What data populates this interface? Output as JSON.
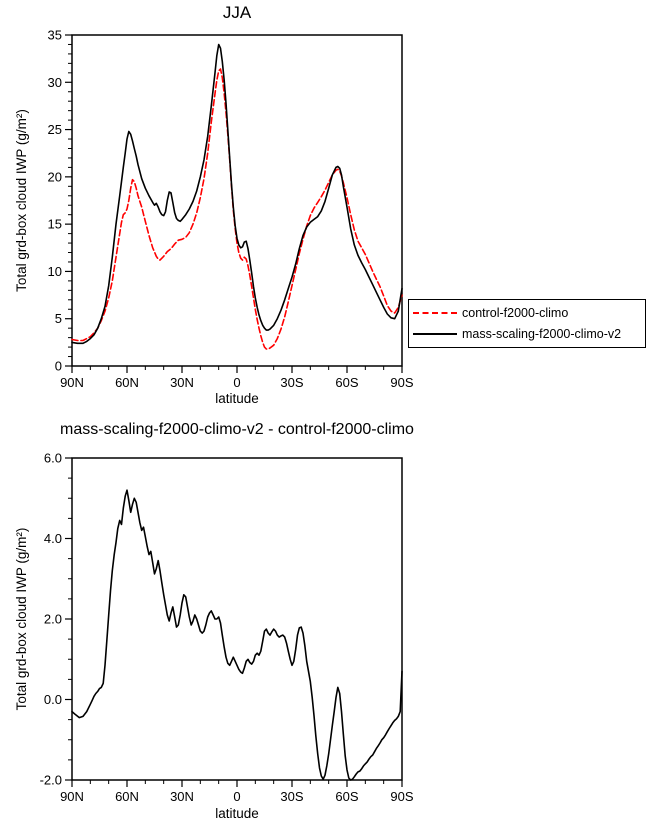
{
  "page": {
    "background": "#ffffff"
  },
  "chart_data": [
    {
      "id": "top",
      "type": "line",
      "title": "JJA",
      "xlabel": "latitude",
      "ylabel": "Total grd-box cloud IWP (g/m²)",
      "xlim": [
        90,
        -90
      ],
      "ylim": [
        0,
        35
      ],
      "x_minor_step": 10,
      "y_minor_step": 1,
      "grid": false,
      "legend": {
        "position": "right-middle",
        "entries": [
          "control-f2000-climo",
          "mass-scaling-f2000-climo-v2"
        ]
      },
      "xticks": [
        {
          "v": 90,
          "label": "90N"
        },
        {
          "v": 60,
          "label": "60N"
        },
        {
          "v": 30,
          "label": "30N"
        },
        {
          "v": 0,
          "label": "0"
        },
        {
          "v": -30,
          "label": "30S"
        },
        {
          "v": -60,
          "label": "60S"
        },
        {
          "v": -90,
          "label": "90S"
        }
      ],
      "yticks": [
        {
          "v": 0,
          "label": "0"
        },
        {
          "v": 5,
          "label": "5"
        },
        {
          "v": 10,
          "label": "10"
        },
        {
          "v": 15,
          "label": "15"
        },
        {
          "v": 20,
          "label": "20"
        },
        {
          "v": 25,
          "label": "25"
        },
        {
          "v": 30,
          "label": "30"
        },
        {
          "v": 35,
          "label": "35"
        }
      ],
      "series": [
        {
          "name": "control-f2000-climo",
          "color": "#ff0000",
          "style": "dashed",
          "x": [
            90,
            87,
            84,
            82,
            80,
            78,
            76,
            74,
            72,
            70,
            68,
            66,
            64,
            63,
            62,
            61,
            60,
            59,
            58,
            57,
            56,
            55,
            54,
            52,
            50,
            48,
            46,
            44,
            43,
            42,
            40,
            38,
            36,
            34,
            32,
            30,
            28,
            26,
            24,
            22,
            20,
            18,
            16,
            14,
            12,
            11,
            10,
            9,
            8,
            7,
            6,
            5,
            4,
            3,
            2,
            1,
            0,
            -1,
            -2,
            -3,
            -4,
            -5,
            -6,
            -7,
            -8,
            -9,
            -10,
            -11,
            -12,
            -13,
            -14,
            -15,
            -16,
            -17,
            -18,
            -20,
            -22,
            -24,
            -26,
            -28,
            -30,
            -32,
            -34,
            -36,
            -38,
            -40,
            -42,
            -44,
            -46,
            -48,
            -50,
            -52,
            -54,
            -55,
            -56,
            -57,
            -58,
            -60,
            -62,
            -64,
            -66,
            -68,
            -70,
            -72,
            -74,
            -76,
            -78,
            -80,
            -82,
            -84,
            -86,
            -88,
            -90
          ],
          "y": [
            2.8,
            2.7,
            2.7,
            2.9,
            3.1,
            3.5,
            4.0,
            4.8,
            5.8,
            7.2,
            9.0,
            11.5,
            14.0,
            15.2,
            16.0,
            16.2,
            16.6,
            17.5,
            18.8,
            19.7,
            19.5,
            18.8,
            18.0,
            16.8,
            15.3,
            13.8,
            12.5,
            11.6,
            11.3,
            11.2,
            11.6,
            12.1,
            12.4,
            12.9,
            13.3,
            13.4,
            13.6,
            14.1,
            15.0,
            16.2,
            17.8,
            19.8,
            22.5,
            25.8,
            28.8,
            30.2,
            31.2,
            31.4,
            30.5,
            28.8,
            26.8,
            24.5,
            21.8,
            19.0,
            16.5,
            14.5,
            13.0,
            12.0,
            11.4,
            11.2,
            11.5,
            11.3,
            10.6,
            9.6,
            8.4,
            7.2,
            6.0,
            4.9,
            4.0,
            3.2,
            2.5,
            2.0,
            1.8,
            1.8,
            1.9,
            2.2,
            2.9,
            3.9,
            5.2,
            6.8,
            8.5,
            10.2,
            11.9,
            13.4,
            14.8,
            15.9,
            16.7,
            17.3,
            17.9,
            18.6,
            19.4,
            20.2,
            20.7,
            20.8,
            20.6,
            20.1,
            19.4,
            17.8,
            16.0,
            14.4,
            13.2,
            12.5,
            11.8,
            10.9,
            10.0,
            9.2,
            8.4,
            7.4,
            6.4,
            5.8,
            5.6,
            6.2,
            7.5
          ]
        },
        {
          "name": "mass-scaling-f2000-climo-v2",
          "color": "#000000",
          "style": "solid",
          "x": [
            90,
            87,
            84,
            82,
            80,
            78,
            76,
            74,
            72,
            70,
            68,
            66,
            64,
            63,
            62,
            61,
            60,
            59,
            58,
            57,
            56,
            55,
            54,
            52,
            50,
            48,
            46,
            45,
            44,
            43,
            42,
            41,
            40,
            39,
            38,
            37,
            36,
            35,
            34,
            33,
            32,
            31,
            30,
            28,
            26,
            24,
            22,
            20,
            18,
            16,
            14,
            12,
            11,
            10,
            9,
            8,
            7,
            6,
            5,
            4,
            3,
            2,
            1,
            0,
            -1,
            -2,
            -3,
            -4,
            -5,
            -6,
            -7,
            -8,
            -9,
            -10,
            -11,
            -12,
            -13,
            -14,
            -15,
            -16,
            -17,
            -18,
            -20,
            -22,
            -24,
            -26,
            -28,
            -30,
            -32,
            -34,
            -36,
            -38,
            -40,
            -42,
            -44,
            -46,
            -48,
            -50,
            -52,
            -54,
            -55,
            -56,
            -57,
            -58,
            -60,
            -62,
            -64,
            -66,
            -68,
            -70,
            -72,
            -74,
            -76,
            -78,
            -80,
            -82,
            -84,
            -86,
            -88,
            -90
          ],
          "y": [
            2.5,
            2.4,
            2.4,
            2.6,
            2.9,
            3.3,
            4.0,
            5.0,
            6.3,
            8.5,
            11.5,
            15.0,
            18.0,
            19.5,
            21.0,
            22.5,
            24.0,
            24.8,
            24.5,
            23.8,
            23.0,
            22.2,
            21.3,
            19.8,
            18.8,
            18.0,
            17.3,
            17.0,
            17.2,
            16.8,
            16.3,
            16.0,
            15.9,
            16.3,
            17.5,
            18.4,
            18.3,
            17.3,
            16.2,
            15.6,
            15.4,
            15.3,
            15.5,
            16.0,
            16.6,
            17.4,
            18.5,
            20.0,
            21.8,
            24.3,
            27.5,
            31.0,
            32.8,
            34.0,
            33.6,
            32.2,
            30.2,
            27.8,
            25.0,
            22.0,
            19.2,
            16.8,
            14.8,
            13.5,
            12.8,
            12.5,
            12.6,
            13.1,
            13.2,
            12.4,
            11.2,
            9.8,
            8.4,
            7.2,
            6.2,
            5.4,
            4.8,
            4.3,
            4.0,
            3.8,
            3.8,
            3.9,
            4.3,
            5.0,
            5.9,
            7.0,
            8.2,
            9.4,
            10.8,
            12.4,
            13.8,
            14.7,
            15.2,
            15.5,
            15.8,
            16.4,
            17.4,
            18.8,
            20.2,
            21.0,
            21.1,
            20.9,
            20.2,
            19.0,
            16.8,
            14.5,
            12.8,
            11.7,
            10.9,
            10.2,
            9.4,
            8.6,
            7.8,
            7.0,
            6.2,
            5.5,
            5.1,
            5.0,
            5.8,
            8.2
          ]
        }
      ]
    },
    {
      "id": "bottom",
      "type": "line",
      "title": "mass-scaling-f2000-climo-v2 - control-f2000-climo",
      "xlabel": "latitude",
      "ylabel": "Total grd-box cloud IWP (g/m²)",
      "xlim": [
        90,
        -90
      ],
      "ylim": [
        -2,
        6
      ],
      "x_minor_step": 10,
      "y_minor_step": 0.5,
      "grid": false,
      "xticks": [
        {
          "v": 90,
          "label": "90N"
        },
        {
          "v": 60,
          "label": "60N"
        },
        {
          "v": 30,
          "label": "30N"
        },
        {
          "v": 0,
          "label": "0"
        },
        {
          "v": -30,
          "label": "30S"
        },
        {
          "v": -60,
          "label": "60S"
        },
        {
          "v": -90,
          "label": "90S"
        }
      ],
      "yticks": [
        {
          "v": -2,
          "label": "-2.0"
        },
        {
          "v": 0,
          "label": "0.0"
        },
        {
          "v": 2,
          "label": "2.0"
        },
        {
          "v": 4,
          "label": "4.0"
        },
        {
          "v": 6,
          "label": "6.0"
        }
      ],
      "series": [
        {
          "name": "mass-scaling-f2000-climo-v2 - control-f2000-climo",
          "color": "#000000",
          "style": "solid",
          "x": [
            90,
            88,
            86,
            84,
            82,
            80,
            79,
            78,
            77,
            76,
            75,
            74,
            73,
            72,
            71,
            70,
            69,
            68,
            67,
            66,
            65,
            64,
            63,
            62,
            61,
            60,
            59,
            58,
            57,
            56,
            55,
            54,
            53,
            52,
            51,
            50,
            49,
            48,
            47,
            46,
            45,
            44,
            43,
            42,
            41,
            40,
            39,
            38,
            37,
            36,
            35,
            34,
            33,
            32,
            31,
            30,
            29,
            28,
            27,
            26,
            25,
            24,
            23,
            22,
            21,
            20,
            19,
            18,
            17,
            16,
            15,
            14,
            13,
            12,
            11,
            10,
            9,
            8,
            7,
            6,
            5,
            4,
            3,
            2,
            1,
            0,
            -1,
            -2,
            -3,
            -4,
            -5,
            -6,
            -7,
            -8,
            -9,
            -10,
            -11,
            -12,
            -13,
            -14,
            -15,
            -16,
            -17,
            -18,
            -19,
            -20,
            -21,
            -22,
            -23,
            -24,
            -25,
            -26,
            -27,
            -28,
            -29,
            -30,
            -31,
            -32,
            -33,
            -34,
            -35,
            -36,
            -37,
            -38,
            -39,
            -40,
            -41,
            -42,
            -43,
            -44,
            -45,
            -46,
            -47,
            -48,
            -49,
            -50,
            -51,
            -52,
            -53,
            -54,
            -55,
            -56,
            -57,
            -58,
            -59,
            -60,
            -61,
            -62,
            -63,
            -64,
            -65,
            -66,
            -67,
            -68,
            -69,
            -70,
            -71,
            -72,
            -73,
            -74,
            -75,
            -76,
            -77,
            -78,
            -79,
            -80,
            -81,
            -82,
            -83,
            -84,
            -85,
            -86,
            -87,
            -88,
            -89,
            -90
          ],
          "y": [
            -0.3,
            -0.38,
            -0.45,
            -0.42,
            -0.3,
            -0.12,
            -0.02,
            0.08,
            0.15,
            0.2,
            0.27,
            0.3,
            0.4,
            0.85,
            1.45,
            2.1,
            2.7,
            3.2,
            3.6,
            3.9,
            4.25,
            4.45,
            4.35,
            4.75,
            5.05,
            5.2,
            4.95,
            4.65,
            4.85,
            5.0,
            4.9,
            4.65,
            4.4,
            4.2,
            4.28,
            4.05,
            3.8,
            3.6,
            3.68,
            3.4,
            3.12,
            3.25,
            3.45,
            3.2,
            2.9,
            2.6,
            2.35,
            2.1,
            1.95,
            2.15,
            2.3,
            2.05,
            1.8,
            1.85,
            2.1,
            2.4,
            2.6,
            2.55,
            2.3,
            2.05,
            1.85,
            1.95,
            2.1,
            2.0,
            1.85,
            1.7,
            1.65,
            1.7,
            1.85,
            2.05,
            2.15,
            2.2,
            2.1,
            2.0,
            2.0,
            2.05,
            1.9,
            1.6,
            1.3,
            1.05,
            0.9,
            0.85,
            0.95,
            1.05,
            0.95,
            0.85,
            0.75,
            0.68,
            0.65,
            0.78,
            0.95,
            1.0,
            0.92,
            0.88,
            0.95,
            1.1,
            1.15,
            1.1,
            1.2,
            1.45,
            1.7,
            1.75,
            1.65,
            1.6,
            1.68,
            1.75,
            1.7,
            1.6,
            1.55,
            1.58,
            1.6,
            1.55,
            1.4,
            1.2,
            1.0,
            0.85,
            0.95,
            1.25,
            1.6,
            1.78,
            1.8,
            1.65,
            1.35,
            0.95,
            0.7,
            0.45,
            0.05,
            -0.4,
            -0.9,
            -1.35,
            -1.7,
            -1.9,
            -1.98,
            -1.88,
            -1.65,
            -1.35,
            -1.0,
            -0.65,
            -0.3,
            0.05,
            0.3,
            0.15,
            -0.3,
            -0.85,
            -1.4,
            -1.75,
            -1.95,
            -2.0,
            -1.98,
            -1.92,
            -1.85,
            -1.8,
            -1.78,
            -1.72,
            -1.65,
            -1.6,
            -1.55,
            -1.48,
            -1.42,
            -1.38,
            -1.3,
            -1.22,
            -1.15,
            -1.08,
            -1.0,
            -0.95,
            -0.88,
            -0.8,
            -0.72,
            -0.65,
            -0.58,
            -0.52,
            -0.48,
            -0.42,
            -0.3,
            0.7
          ]
        }
      ]
    }
  ]
}
